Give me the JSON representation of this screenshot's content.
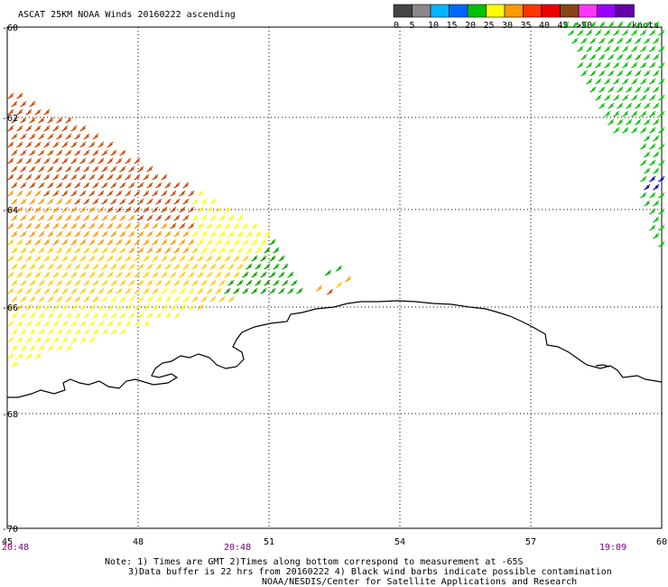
{
  "title": "ASCAT 25KM NOAA Winds 20160222 ascending",
  "legend": {
    "unit": "knots",
    "bins": [
      {
        "label": "0",
        "color": "#444444"
      },
      {
        "label": "5",
        "color": "#888888"
      },
      {
        "label": "10",
        "color": "#00b4ff"
      },
      {
        "label": "15",
        "color": "#0066ff"
      },
      {
        "label": "20",
        "color": "#00c000"
      },
      {
        "label": "25",
        "color": "#ffff00"
      },
      {
        "label": "30",
        "color": "#ff9900"
      },
      {
        "label": "35",
        "color": "#ff3300"
      },
      {
        "label": "40",
        "color": "#ee0000"
      },
      {
        "label": "45",
        "color": "#8b4513"
      },
      {
        "label": ">50",
        "color": "#ff33ff"
      },
      {
        "label": "",
        "color": "#9900ff"
      },
      {
        "label": "",
        "color": "#6600aa"
      }
    ]
  },
  "axes": {
    "x_ticks": [
      "45",
      "48",
      "51",
      "54",
      "57",
      "60"
    ],
    "y_ticks": [
      "-60",
      "-62",
      "-64",
      "-66",
      "-68",
      "-70"
    ]
  },
  "times": [
    "20:48",
    "20:48",
    "19:09"
  ],
  "notes": [
    "Note: 1) Times are GMT 2)Times along bottom correspond to measurement at -65S",
    "3)Data buffer is 22 hrs from 20160222 4) Black wind barbs indicate possible contamination",
    "NOAA/NESDIS/Center for Satellite Applications and Research"
  ],
  "wind_swaths": [
    {
      "name": "west-swath",
      "colors": [
        "#cc4400",
        "#ff9900",
        "#ffcc00",
        "#ffff00",
        "#00c000"
      ]
    },
    {
      "name": "central-patch",
      "colors": [
        "#00a000",
        "#007700"
      ]
    },
    {
      "name": "east-swath",
      "colors": [
        "#00c000",
        "#0000cc"
      ]
    }
  ]
}
